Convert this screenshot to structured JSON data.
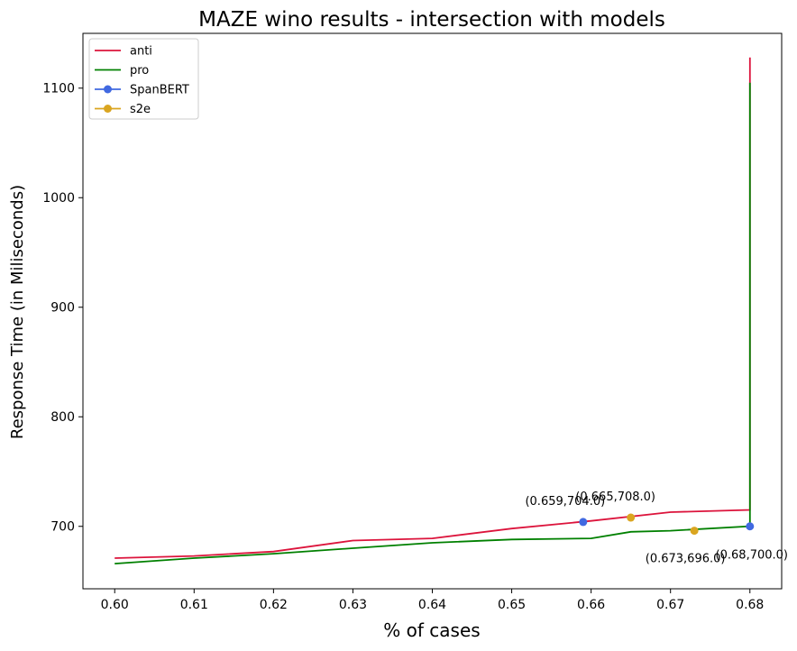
{
  "chart_data": {
    "type": "line",
    "title": "MAZE wino results - intersection with models",
    "xlabel": "% of cases",
    "ylabel": "Response Time (in Miliseconds)",
    "xlim": [
      0.596,
      0.684
    ],
    "ylim": [
      643,
      1150
    ],
    "xticks": [
      "0.60",
      "0.61",
      "0.62",
      "0.63",
      "0.64",
      "0.65",
      "0.66",
      "0.67",
      "0.68"
    ],
    "xtick_values": [
      0.6,
      0.61,
      0.62,
      0.63,
      0.64,
      0.65,
      0.66,
      0.67,
      0.68
    ],
    "yticks": [
      "700",
      "800",
      "900",
      "1000",
      "1100"
    ],
    "ytick_values": [
      700,
      800,
      900,
      1000,
      1100
    ],
    "grid": false,
    "legend_position": "top-left",
    "series": [
      {
        "name": "anti",
        "color": "#dc143c",
        "x": [
          0.6,
          0.61,
          0.62,
          0.63,
          0.64,
          0.65,
          0.66,
          0.67,
          0.68,
          0.68
        ],
        "y": [
          671,
          673,
          677,
          687,
          689,
          698,
          705,
          713,
          715,
          1128
        ]
      },
      {
        "name": "pro",
        "color": "#008000",
        "x": [
          0.6,
          0.61,
          0.62,
          0.63,
          0.64,
          0.65,
          0.66,
          0.665,
          0.67,
          0.68,
          0.68
        ],
        "y": [
          666,
          671,
          675,
          680,
          685,
          688,
          689,
          695,
          696,
          700,
          1105
        ]
      }
    ],
    "markers": [
      {
        "name": "SpanBERT",
        "color": "#4169e1",
        "points": [
          {
            "x": 0.659,
            "y": 704.0,
            "label": "(0.659,704.0)"
          },
          {
            "x": 0.68,
            "y": 700.0,
            "label": "(0.68,700.0)"
          }
        ]
      },
      {
        "name": "s2e",
        "color": "#daa520",
        "points": [
          {
            "x": 0.665,
            "y": 708.0,
            "label": "(0.665,708.0)"
          },
          {
            "x": 0.673,
            "y": 696.0,
            "label": "(0.673,696.0)"
          }
        ]
      }
    ],
    "legend": [
      {
        "label": "anti",
        "color": "#dc143c",
        "marker": false
      },
      {
        "label": "pro",
        "color": "#008000",
        "marker": false
      },
      {
        "label": "SpanBERT",
        "color": "#4169e1",
        "marker": true
      },
      {
        "label": "s2e",
        "color": "#daa520",
        "marker": true
      }
    ]
  }
}
